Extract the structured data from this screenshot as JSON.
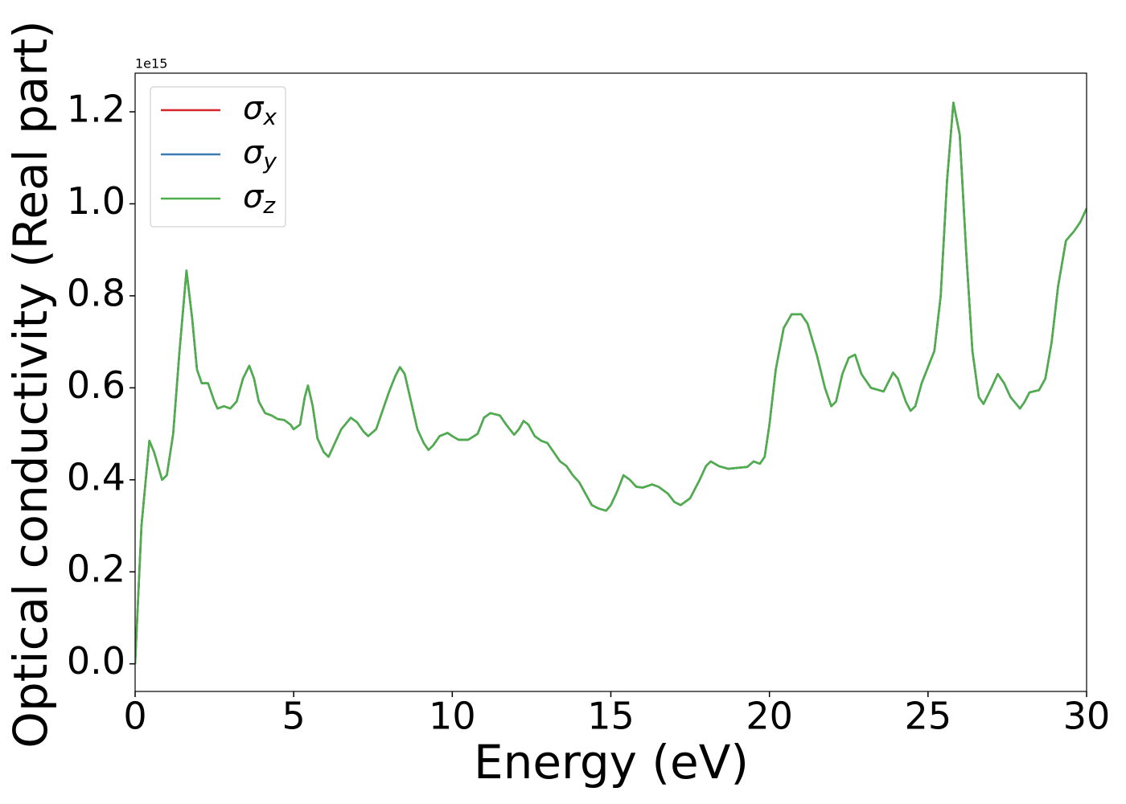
{
  "chart_data": {
    "type": "line",
    "xlabel": "Energy (eV)",
    "ylabel": "Optical conductivity (Real part)",
    "y_offset_label": "1e15",
    "xlim": [
      0,
      30
    ],
    "ylim": [
      -0.06,
      1.284
    ],
    "xticks": [
      0,
      5,
      10,
      15,
      20,
      25,
      30
    ],
    "yticks": [
      {
        "value": 0,
        "label": "0.0"
      },
      0.2,
      0.4,
      0.6,
      0.8,
      {
        "value": 1,
        "label": "1.0"
      },
      1.2
    ],
    "legend": "upper left",
    "x": [
      0,
      0.2,
      0.45,
      0.6,
      0.85,
      1.0,
      1.2,
      1.4,
      1.62,
      1.8,
      1.95,
      2.1,
      2.3,
      2.5,
      2.6,
      2.8,
      3.0,
      3.2,
      3.4,
      3.6,
      3.75,
      3.9,
      4.1,
      4.3,
      4.5,
      4.7,
      4.9,
      5.0,
      5.2,
      5.35,
      5.45,
      5.6,
      5.75,
      5.95,
      6.1,
      6.3,
      6.5,
      6.8,
      7.0,
      7.2,
      7.35,
      7.6,
      7.8,
      8.0,
      8.2,
      8.35,
      8.5,
      8.7,
      8.9,
      9.1,
      9.25,
      9.4,
      9.6,
      9.85,
      10.0,
      10.2,
      10.5,
      10.8,
      11.0,
      11.2,
      11.5,
      11.7,
      11.95,
      12.1,
      12.25,
      12.4,
      12.6,
      12.8,
      13.0,
      13.2,
      13.4,
      13.6,
      13.8,
      14.0,
      14.2,
      14.4,
      14.6,
      14.85,
      15.0,
      15.2,
      15.4,
      15.6,
      15.8,
      16.0,
      16.3,
      16.5,
      16.8,
      17.0,
      17.2,
      17.5,
      17.8,
      18.0,
      18.15,
      18.4,
      18.7,
      19.0,
      19.3,
      19.5,
      19.7,
      19.85,
      20.0,
      20.2,
      20.45,
      20.7,
      21.0,
      21.2,
      21.5,
      21.75,
      21.95,
      22.1,
      22.3,
      22.5,
      22.7,
      22.9,
      23.2,
      23.6,
      23.9,
      24.05,
      24.3,
      24.45,
      24.6,
      24.8,
      25.0,
      25.2,
      25.4,
      25.6,
      25.8,
      26.0,
      26.2,
      26.4,
      26.6,
      26.75,
      27.0,
      27.2,
      27.4,
      27.6,
      27.9,
      28.05,
      28.2,
      28.5,
      28.7,
      28.9,
      29.1,
      29.35,
      29.6,
      29.8,
      30.0
    ],
    "series": [
      {
        "name": "σx",
        "color": "#d62728",
        "values": [
          0.0,
          0.3,
          0.485,
          0.46,
          0.4,
          0.41,
          0.5,
          0.68,
          0.855,
          0.75,
          0.64,
          0.61,
          0.61,
          0.57,
          0.555,
          0.56,
          0.555,
          0.57,
          0.62,
          0.648,
          0.62,
          0.57,
          0.545,
          0.54,
          0.532,
          0.53,
          0.52,
          0.51,
          0.52,
          0.58,
          0.605,
          0.56,
          0.49,
          0.46,
          0.45,
          0.48,
          0.51,
          0.535,
          0.525,
          0.505,
          0.495,
          0.51,
          0.55,
          0.59,
          0.625,
          0.645,
          0.63,
          0.57,
          0.51,
          0.48,
          0.465,
          0.475,
          0.495,
          0.502,
          0.495,
          0.487,
          0.487,
          0.5,
          0.535,
          0.545,
          0.54,
          0.52,
          0.498,
          0.51,
          0.528,
          0.52,
          0.495,
          0.485,
          0.48,
          0.46,
          0.44,
          0.43,
          0.41,
          0.395,
          0.37,
          0.345,
          0.338,
          0.333,
          0.345,
          0.375,
          0.41,
          0.4,
          0.385,
          0.383,
          0.39,
          0.385,
          0.37,
          0.352,
          0.345,
          0.36,
          0.4,
          0.43,
          0.44,
          0.43,
          0.424,
          0.426,
          0.428,
          0.44,
          0.435,
          0.45,
          0.52,
          0.64,
          0.73,
          0.76,
          0.76,
          0.74,
          0.67,
          0.6,
          0.56,
          0.57,
          0.63,
          0.665,
          0.672,
          0.63,
          0.6,
          0.592,
          0.633,
          0.62,
          0.57,
          0.55,
          0.56,
          0.61,
          0.645,
          0.68,
          0.8,
          1.05,
          1.22,
          1.15,
          0.9,
          0.68,
          0.58,
          0.565,
          0.6,
          0.63,
          0.61,
          0.58,
          0.555,
          0.57,
          0.59,
          0.595,
          0.62,
          0.7,
          0.82,
          0.92,
          0.94,
          0.96,
          0.99
        ]
      },
      {
        "name": "σy",
        "color": "#3a7db5",
        "values": [
          0.0,
          0.3,
          0.485,
          0.46,
          0.4,
          0.41,
          0.5,
          0.68,
          0.855,
          0.75,
          0.64,
          0.61,
          0.61,
          0.57,
          0.555,
          0.56,
          0.555,
          0.57,
          0.62,
          0.648,
          0.62,
          0.57,
          0.545,
          0.54,
          0.532,
          0.53,
          0.52,
          0.51,
          0.52,
          0.58,
          0.605,
          0.56,
          0.49,
          0.46,
          0.45,
          0.48,
          0.51,
          0.535,
          0.525,
          0.505,
          0.495,
          0.51,
          0.55,
          0.59,
          0.625,
          0.645,
          0.63,
          0.57,
          0.51,
          0.48,
          0.465,
          0.475,
          0.495,
          0.502,
          0.495,
          0.487,
          0.487,
          0.5,
          0.535,
          0.545,
          0.54,
          0.52,
          0.498,
          0.51,
          0.528,
          0.52,
          0.495,
          0.485,
          0.48,
          0.46,
          0.44,
          0.43,
          0.41,
          0.395,
          0.37,
          0.345,
          0.338,
          0.333,
          0.345,
          0.375,
          0.41,
          0.4,
          0.385,
          0.383,
          0.39,
          0.385,
          0.37,
          0.352,
          0.345,
          0.36,
          0.4,
          0.43,
          0.44,
          0.43,
          0.424,
          0.426,
          0.428,
          0.44,
          0.435,
          0.45,
          0.52,
          0.64,
          0.73,
          0.76,
          0.76,
          0.74,
          0.67,
          0.6,
          0.56,
          0.57,
          0.63,
          0.665,
          0.672,
          0.63,
          0.6,
          0.592,
          0.633,
          0.62,
          0.57,
          0.55,
          0.56,
          0.61,
          0.645,
          0.68,
          0.8,
          1.05,
          1.22,
          1.15,
          0.9,
          0.68,
          0.58,
          0.565,
          0.6,
          0.63,
          0.61,
          0.58,
          0.555,
          0.57,
          0.59,
          0.595,
          0.62,
          0.7,
          0.82,
          0.92,
          0.94,
          0.96,
          0.99
        ]
      },
      {
        "name": "σz",
        "color": "#4daf4a",
        "values": [
          0.0,
          0.3,
          0.485,
          0.46,
          0.4,
          0.41,
          0.5,
          0.68,
          0.855,
          0.75,
          0.64,
          0.61,
          0.61,
          0.57,
          0.555,
          0.56,
          0.555,
          0.57,
          0.62,
          0.648,
          0.62,
          0.57,
          0.545,
          0.54,
          0.532,
          0.53,
          0.52,
          0.51,
          0.52,
          0.58,
          0.605,
          0.56,
          0.49,
          0.46,
          0.45,
          0.48,
          0.51,
          0.535,
          0.525,
          0.505,
          0.495,
          0.51,
          0.55,
          0.59,
          0.625,
          0.645,
          0.63,
          0.57,
          0.51,
          0.48,
          0.465,
          0.475,
          0.495,
          0.502,
          0.495,
          0.487,
          0.487,
          0.5,
          0.535,
          0.545,
          0.54,
          0.52,
          0.498,
          0.51,
          0.528,
          0.52,
          0.495,
          0.485,
          0.48,
          0.46,
          0.44,
          0.43,
          0.41,
          0.395,
          0.37,
          0.345,
          0.338,
          0.333,
          0.345,
          0.375,
          0.41,
          0.4,
          0.385,
          0.383,
          0.39,
          0.385,
          0.37,
          0.352,
          0.345,
          0.36,
          0.4,
          0.43,
          0.44,
          0.43,
          0.424,
          0.426,
          0.428,
          0.44,
          0.435,
          0.45,
          0.52,
          0.64,
          0.73,
          0.76,
          0.76,
          0.74,
          0.67,
          0.6,
          0.56,
          0.57,
          0.63,
          0.665,
          0.672,
          0.63,
          0.6,
          0.592,
          0.633,
          0.62,
          0.57,
          0.55,
          0.56,
          0.61,
          0.645,
          0.68,
          0.8,
          1.05,
          1.22,
          1.15,
          0.9,
          0.68,
          0.58,
          0.565,
          0.6,
          0.63,
          0.61,
          0.58,
          0.555,
          0.57,
          0.59,
          0.595,
          0.62,
          0.7,
          0.82,
          0.92,
          0.94,
          0.96,
          0.99
        ]
      }
    ]
  }
}
